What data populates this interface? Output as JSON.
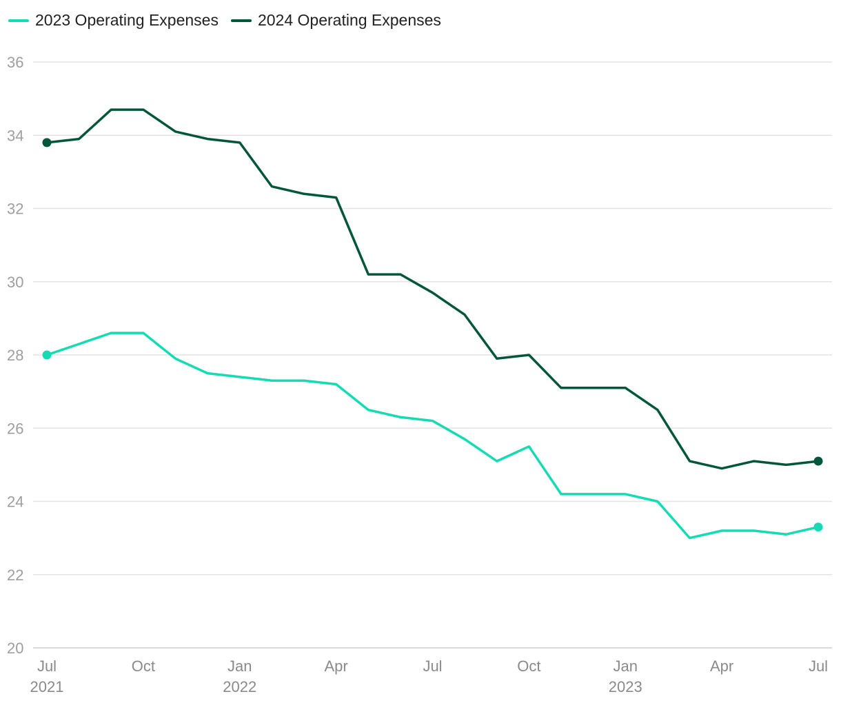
{
  "chart_data": {
    "type": "line",
    "title": "",
    "xlabel": "",
    "ylabel": "",
    "ylim": [
      20,
      36
    ],
    "yticks": [
      20,
      22,
      24,
      26,
      28,
      30,
      32,
      34,
      36
    ],
    "grid": true,
    "legend_position": "top-left",
    "x": [
      "2021-07",
      "2021-08",
      "2021-09",
      "2021-10",
      "2021-11",
      "2021-12",
      "2022-01",
      "2022-02",
      "2022-03",
      "2022-04",
      "2022-05",
      "2022-06",
      "2022-07",
      "2022-08",
      "2022-09",
      "2022-10",
      "2022-11",
      "2022-12",
      "2023-01",
      "2023-02",
      "2023-03",
      "2023-04",
      "2023-05",
      "2023-06",
      "2023-07"
    ],
    "x_tick_labels": [
      {
        "index": 0,
        "label": "Jul",
        "year": "2021"
      },
      {
        "index": 3,
        "label": "Oct",
        "year": ""
      },
      {
        "index": 6,
        "label": "Jan",
        "year": "2022"
      },
      {
        "index": 9,
        "label": "Apr",
        "year": ""
      },
      {
        "index": 12,
        "label": "Jul",
        "year": ""
      },
      {
        "index": 15,
        "label": "Oct",
        "year": ""
      },
      {
        "index": 18,
        "label": "Jan",
        "year": "2023"
      },
      {
        "index": 21,
        "label": "Apr",
        "year": ""
      },
      {
        "index": 24,
        "label": "Jul",
        "year": ""
      }
    ],
    "series": [
      {
        "name": "2023 Operating Expenses",
        "color": "#14dbb4",
        "values": [
          28.0,
          28.3,
          28.6,
          28.6,
          27.9,
          27.5,
          27.4,
          27.3,
          27.3,
          27.2,
          26.5,
          26.3,
          26.2,
          25.7,
          25.1,
          25.5,
          24.2,
          24.2,
          24.2,
          24.0,
          23.0,
          23.2,
          23.2,
          23.1,
          23.3
        ]
      },
      {
        "name": "2024 Operating Expenses",
        "color": "#02573b",
        "values": [
          33.8,
          33.9,
          34.7,
          34.7,
          34.1,
          33.9,
          33.8,
          32.6,
          32.4,
          32.3,
          30.2,
          30.2,
          29.7,
          29.1,
          27.9,
          28.0,
          27.1,
          27.1,
          27.1,
          26.5,
          25.1,
          24.9,
          25.1,
          25.0,
          25.1
        ]
      }
    ]
  }
}
